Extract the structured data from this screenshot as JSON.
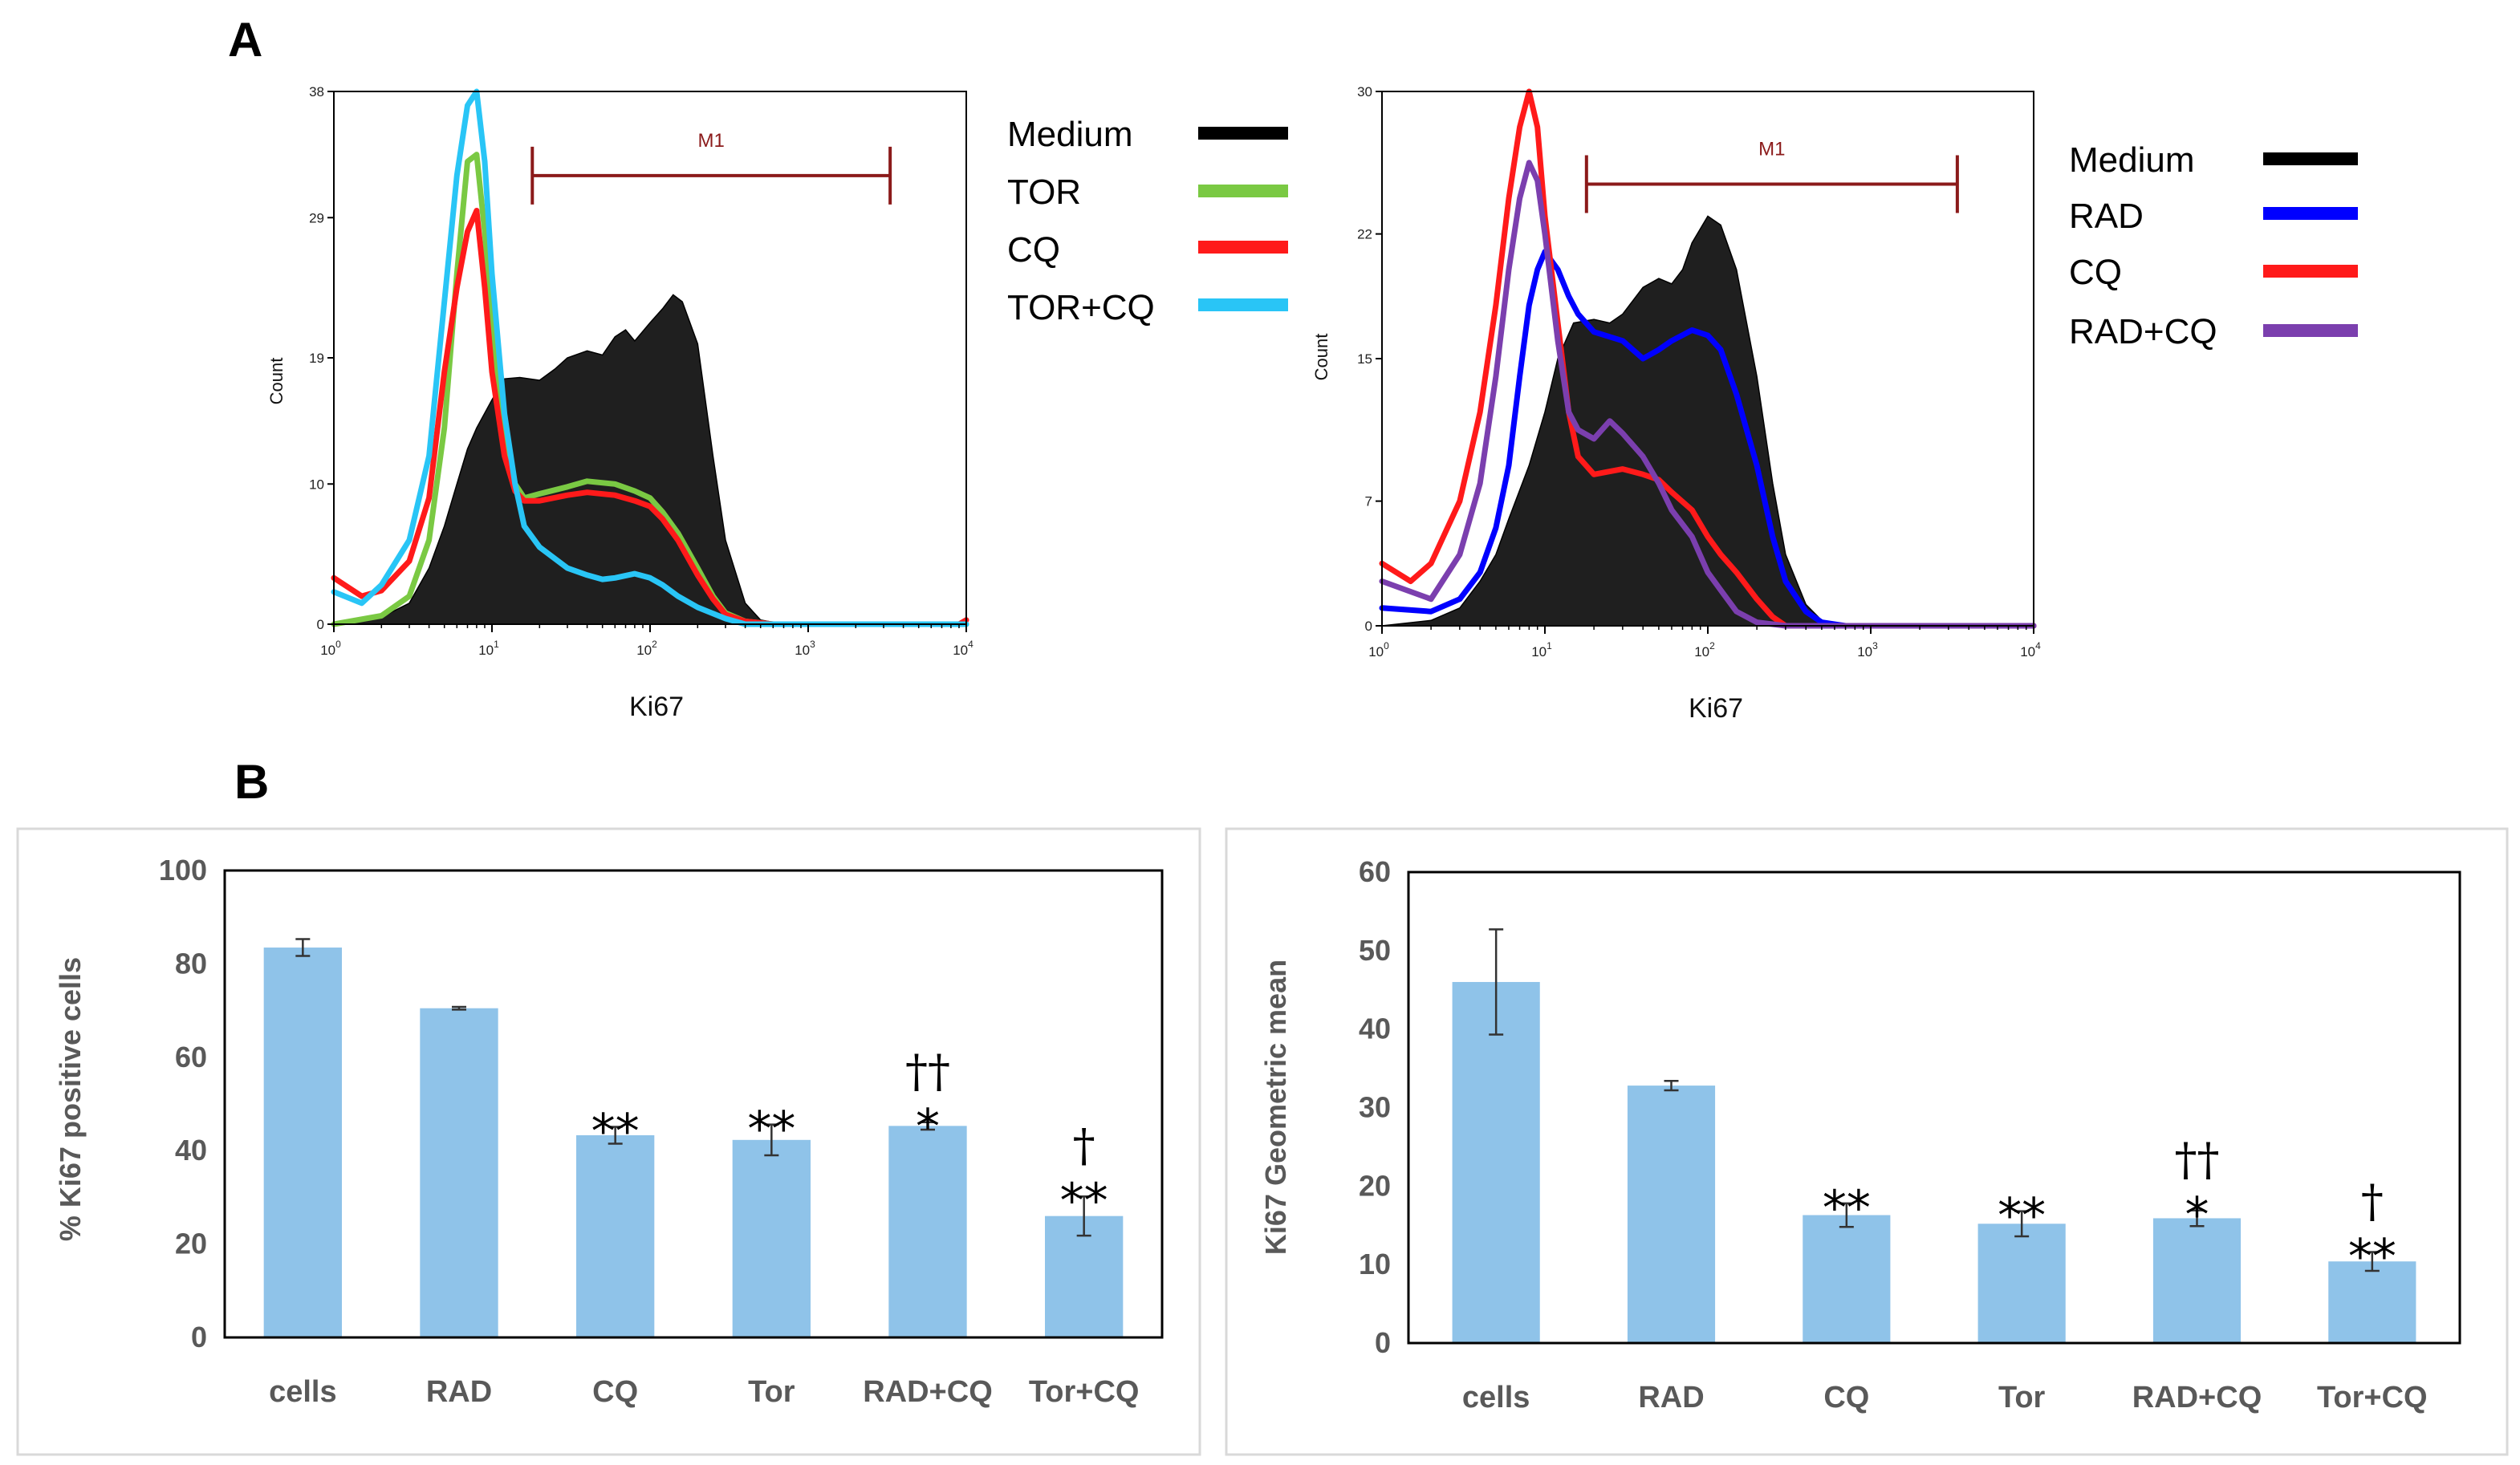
{
  "chart_data": [
    {
      "id": "A-left",
      "panel_label": "A",
      "type": "histogram",
      "ylabel": "Count",
      "xlabel": "Ki67",
      "x_scale": "log",
      "xlim": [
        1,
        10000
      ],
      "ylim": [
        0,
        38
      ],
      "x_tick_labels": [
        {
          "base": "10",
          "exp": "0"
        },
        {
          "base": "10",
          "exp": "1"
        },
        {
          "base": "10",
          "exp": "2"
        },
        {
          "base": "10",
          "exp": "3"
        },
        {
          "base": "10",
          "exp": "4"
        }
      ],
      "y_ticks": [
        0,
        10,
        19,
        29,
        38
      ],
      "gate": {
        "label": "M1",
        "x_start": 18,
        "x_end": 3300,
        "y": 32,
        "color": "#8b1a1a"
      },
      "legend": [
        {
          "label": "Medium",
          "color": "#000000"
        },
        {
          "label": "TOR",
          "color": "#7ac943"
        },
        {
          "label": "CQ",
          "color": "#ff1a1a"
        },
        {
          "label": "TOR+CQ",
          "color": "#29c5f6"
        }
      ],
      "series": [
        {
          "name": "Medium",
          "fill": true,
          "points": [
            [
              1,
              0
            ],
            [
              2,
              0.5
            ],
            [
              3,
              1.5
            ],
            [
              4,
              4
            ],
            [
              5,
              7
            ],
            [
              6,
              10
            ],
            [
              7,
              12.5
            ],
            [
              8,
              14
            ],
            [
              10,
              16
            ],
            [
              12,
              17.5
            ],
            [
              15,
              17.6
            ],
            [
              20,
              17.4
            ],
            [
              25,
              18.2
            ],
            [
              30,
              19
            ],
            [
              40,
              19.5
            ],
            [
              50,
              19.2
            ],
            [
              60,
              20.5
            ],
            [
              70,
              21
            ],
            [
              80,
              20.2
            ],
            [
              100,
              21.5
            ],
            [
              120,
              22.5
            ],
            [
              140,
              23.5
            ],
            [
              160,
              23
            ],
            [
              200,
              20
            ],
            [
              250,
              12
            ],
            [
              300,
              6
            ],
            [
              400,
              1.5
            ],
            [
              500,
              0.3
            ],
            [
              700,
              0
            ],
            [
              10000,
              0
            ]
          ]
        },
        {
          "name": "TOR",
          "points": [
            [
              1,
              0
            ],
            [
              2,
              0.6
            ],
            [
              3,
              2
            ],
            [
              4,
              6
            ],
            [
              5,
              14
            ],
            [
              6,
              25
            ],
            [
              7,
              33
            ],
            [
              8,
              33.5
            ],
            [
              9,
              28
            ],
            [
              10,
              21
            ],
            [
              12,
              14
            ],
            [
              14,
              10
            ],
            [
              16,
              9
            ],
            [
              20,
              9.3
            ],
            [
              30,
              9.8
            ],
            [
              40,
              10.2
            ],
            [
              60,
              10
            ],
            [
              80,
              9.5
            ],
            [
              100,
              9
            ],
            [
              120,
              8
            ],
            [
              150,
              6.5
            ],
            [
              200,
              4
            ],
            [
              250,
              2
            ],
            [
              300,
              0.8
            ],
            [
              400,
              0.2
            ],
            [
              600,
              0
            ],
            [
              10000,
              0
            ]
          ]
        },
        {
          "name": "CQ",
          "points": [
            [
              1,
              3.3
            ],
            [
              1.5,
              2
            ],
            [
              2,
              2.4
            ],
            [
              3,
              4.5
            ],
            [
              4,
              9
            ],
            [
              5,
              18
            ],
            [
              6,
              24
            ],
            [
              7,
              28
            ],
            [
              8,
              29.5
            ],
            [
              9,
              24
            ],
            [
              10,
              18
            ],
            [
              12,
              12
            ],
            [
              14,
              9.5
            ],
            [
              16,
              8.8
            ],
            [
              20,
              8.8
            ],
            [
              30,
              9.2
            ],
            [
              40,
              9.4
            ],
            [
              60,
              9.2
            ],
            [
              80,
              8.8
            ],
            [
              100,
              8.4
            ],
            [
              120,
              7.5
            ],
            [
              150,
              6
            ],
            [
              200,
              3.5
            ],
            [
              250,
              1.8
            ],
            [
              300,
              0.7
            ],
            [
              400,
              0.2
            ],
            [
              600,
              0
            ],
            [
              9000,
              0
            ],
            [
              10000,
              0.3
            ]
          ]
        },
        {
          "name": "TOR+CQ",
          "points": [
            [
              1,
              2.3
            ],
            [
              1.5,
              1.5
            ],
            [
              2,
              2.8
            ],
            [
              3,
              6
            ],
            [
              4,
              12
            ],
            [
              5,
              23
            ],
            [
              6,
              32
            ],
            [
              7,
              37
            ],
            [
              8,
              38
            ],
            [
              9,
              33
            ],
            [
              10,
              25
            ],
            [
              12,
              15
            ],
            [
              14,
              10
            ],
            [
              16,
              7
            ],
            [
              20,
              5.5
            ],
            [
              30,
              4
            ],
            [
              40,
              3.5
            ],
            [
              50,
              3.2
            ],
            [
              60,
              3.3
            ],
            [
              80,
              3.6
            ],
            [
              100,
              3.3
            ],
            [
              120,
              2.8
            ],
            [
              150,
              2
            ],
            [
              200,
              1.2
            ],
            [
              300,
              0.4
            ],
            [
              400,
              0
            ],
            [
              10000,
              0
            ]
          ]
        }
      ]
    },
    {
      "id": "A-right",
      "type": "histogram",
      "ylabel": "Count",
      "xlabel": "Ki67",
      "x_scale": "log",
      "xlim": [
        1,
        10000
      ],
      "ylim": [
        0,
        30
      ],
      "x_tick_labels": [
        {
          "base": "10",
          "exp": "0"
        },
        {
          "base": "10",
          "exp": "1"
        },
        {
          "base": "10",
          "exp": "2"
        },
        {
          "base": "10",
          "exp": "3"
        },
        {
          "base": "10",
          "exp": "4"
        }
      ],
      "y_ticks": [
        0,
        7,
        15,
        22,
        30
      ],
      "gate": {
        "label": "M1",
        "x_start": 18,
        "x_end": 3400,
        "y": 24.8,
        "color": "#8b1a1a"
      },
      "legend": [
        {
          "label": "Medium",
          "color": "#000000"
        },
        {
          "label": "RAD",
          "color": "#0000ff"
        },
        {
          "label": "CQ",
          "color": "#ff1a1a"
        },
        {
          "label": "RAD+CQ",
          "color": "#7b3fae"
        }
      ],
      "series": [
        {
          "name": "Medium",
          "fill": true,
          "points": [
            [
              1,
              0
            ],
            [
              2,
              0.3
            ],
            [
              3,
              1
            ],
            [
              4,
              2.5
            ],
            [
              5,
              4
            ],
            [
              6,
              6
            ],
            [
              8,
              9
            ],
            [
              10,
              12
            ],
            [
              12,
              15
            ],
            [
              15,
              17
            ],
            [
              20,
              17.2
            ],
            [
              25,
              17
            ],
            [
              30,
              17.5
            ],
            [
              40,
              19
            ],
            [
              50,
              19.5
            ],
            [
              60,
              19.2
            ],
            [
              70,
              20
            ],
            [
              80,
              21.5
            ],
            [
              100,
              23
            ],
            [
              120,
              22.5
            ],
            [
              150,
              20
            ],
            [
              200,
              14
            ],
            [
              250,
              8
            ],
            [
              300,
              4
            ],
            [
              400,
              1.2
            ],
            [
              500,
              0.3
            ],
            [
              700,
              0
            ],
            [
              10000,
              0
            ]
          ]
        },
        {
          "name": "RAD",
          "points": [
            [
              1,
              1
            ],
            [
              2,
              0.8
            ],
            [
              3,
              1.5
            ],
            [
              4,
              3
            ],
            [
              5,
              5.5
            ],
            [
              6,
              9
            ],
            [
              7,
              14
            ],
            [
              8,
              18
            ],
            [
              9,
              20
            ],
            [
              10,
              21
            ],
            [
              12,
              20
            ],
            [
              14,
              18.5
            ],
            [
              16,
              17.5
            ],
            [
              20,
              16.5
            ],
            [
              30,
              16
            ],
            [
              40,
              15
            ],
            [
              50,
              15.5
            ],
            [
              60,
              16
            ],
            [
              80,
              16.6
            ],
            [
              100,
              16.3
            ],
            [
              120,
              15.5
            ],
            [
              150,
              13
            ],
            [
              200,
              9
            ],
            [
              250,
              5
            ],
            [
              300,
              2.5
            ],
            [
              400,
              0.8
            ],
            [
              500,
              0.2
            ],
            [
              700,
              0
            ],
            [
              10000,
              0
            ]
          ]
        },
        {
          "name": "CQ",
          "points": [
            [
              1,
              3.5
            ],
            [
              1.5,
              2.5
            ],
            [
              2,
              3.5
            ],
            [
              3,
              7
            ],
            [
              4,
              12
            ],
            [
              5,
              18
            ],
            [
              6,
              24
            ],
            [
              7,
              28
            ],
            [
              8,
              30
            ],
            [
              9,
              28
            ],
            [
              10,
              23
            ],
            [
              12,
              17
            ],
            [
              14,
              12
            ],
            [
              16,
              9.5
            ],
            [
              20,
              8.5
            ],
            [
              30,
              8.8
            ],
            [
              40,
              8.5
            ],
            [
              50,
              8.2
            ],
            [
              60,
              7.5
            ],
            [
              80,
              6.5
            ],
            [
              100,
              5
            ],
            [
              120,
              4
            ],
            [
              150,
              3
            ],
            [
              200,
              1.5
            ],
            [
              250,
              0.5
            ],
            [
              300,
              0
            ],
            [
              10000,
              0
            ]
          ]
        },
        {
          "name": "RAD+CQ",
          "points": [
            [
              1,
              2.5
            ],
            [
              2,
              1.5
            ],
            [
              3,
              4
            ],
            [
              4,
              8
            ],
            [
              5,
              14
            ],
            [
              6,
              20
            ],
            [
              7,
              24
            ],
            [
              8,
              26
            ],
            [
              9,
              25
            ],
            [
              10,
              22
            ],
            [
              12,
              16
            ],
            [
              14,
              12
            ],
            [
              16,
              11
            ],
            [
              20,
              10.5
            ],
            [
              25,
              11.5
            ],
            [
              30,
              10.8
            ],
            [
              40,
              9.5
            ],
            [
              50,
              8
            ],
            [
              60,
              6.5
            ],
            [
              80,
              5
            ],
            [
              100,
              3
            ],
            [
              120,
              2
            ],
            [
              150,
              0.8
            ],
            [
              200,
              0.2
            ],
            [
              300,
              0
            ],
            [
              10000,
              0
            ]
          ]
        }
      ]
    },
    {
      "id": "B-left",
      "panel_label": "B",
      "type": "bar",
      "ylabel": "% Ki67 positive cells",
      "ylim": [
        0,
        100
      ],
      "y_ticks": [
        0,
        20,
        40,
        60,
        80,
        100
      ],
      "categories": [
        "cells",
        "RAD",
        "CQ",
        "Tor",
        "RAD+CQ",
        "Tor+CQ"
      ],
      "values": [
        83.5,
        70.5,
        43.3,
        42.3,
        45.3,
        26.0
      ],
      "errors": [
        1.8,
        0.3,
        1.8,
        3.3,
        0.8,
        4.2
      ],
      "bar_color": "#8fc3e9",
      "significance": [
        {
          "category": "CQ",
          "marks": [
            "**"
          ]
        },
        {
          "category": "Tor",
          "marks": [
            "**"
          ]
        },
        {
          "category": "RAD+CQ",
          "marks": [
            "††",
            "*"
          ]
        },
        {
          "category": "Tor+CQ",
          "marks": [
            "†",
            "**"
          ]
        }
      ]
    },
    {
      "id": "B-right",
      "type": "bar",
      "ylabel": "Ki67 Geometric mean",
      "ylim": [
        0,
        60
      ],
      "y_ticks": [
        0,
        10,
        20,
        30,
        40,
        50,
        60
      ],
      "categories": [
        "cells",
        "RAD",
        "CQ",
        "Tor",
        "RAD+CQ",
        "Tor+CQ"
      ],
      "values": [
        46.0,
        32.8,
        16.3,
        15.2,
        15.9,
        10.4
      ],
      "errors": [
        6.7,
        0.6,
        1.5,
        1.6,
        1.0,
        1.2
      ],
      "bar_color": "#8fc3e9",
      "significance": [
        {
          "category": "CQ",
          "marks": [
            "**"
          ]
        },
        {
          "category": "Tor",
          "marks": [
            "**"
          ]
        },
        {
          "category": "RAD+CQ",
          "marks": [
            "††",
            "*"
          ]
        },
        {
          "category": "Tor+CQ",
          "marks": [
            "†",
            "**"
          ]
        }
      ]
    }
  ]
}
